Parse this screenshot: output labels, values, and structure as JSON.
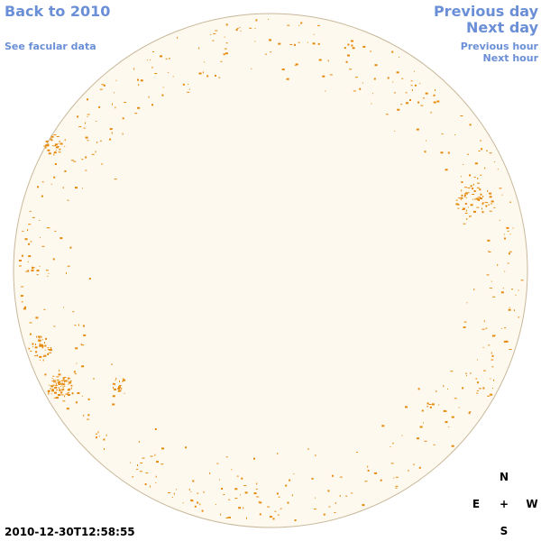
{
  "nav": {
    "back_to_label": "Back to 2010",
    "facular_label": "See facular data",
    "previous_day_label": "Previous day",
    "next_day_label": "Next day",
    "previous_hour_label": "Previous hour",
    "next_hour_label": "Next hour"
  },
  "timestamp": "2010-12-30T12:58:55",
  "compass": {
    "north": "N",
    "east": "E",
    "west": "W",
    "south": "S",
    "center": "+"
  },
  "colors": {
    "link": "#6b8fd6",
    "disk_fill": "#fef9ef",
    "disk_outline": "#c7b89a",
    "facula": "#e5890a"
  }
}
